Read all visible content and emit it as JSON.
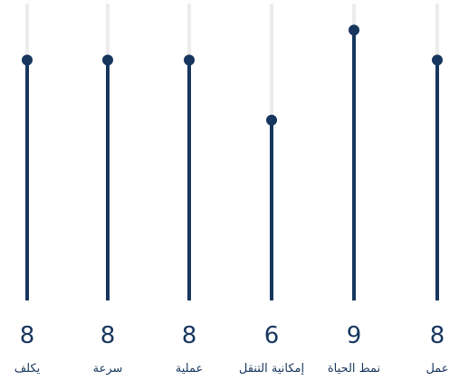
{
  "chart_data": {
    "type": "lollipop",
    "categories": [
      "يكلف",
      "سرعة",
      "عملية",
      "إمكانية التنقل",
      "نمط الحياة",
      "عمل"
    ],
    "values": [
      8,
      8,
      8,
      6,
      9,
      8
    ],
    "ylim": [
      0,
      10
    ],
    "show_value_labels": true,
    "grid": false,
    "legend": "none",
    "colors": {
      "bar": "#17365d",
      "track": "#ececec",
      "text": "#17365d"
    }
  }
}
